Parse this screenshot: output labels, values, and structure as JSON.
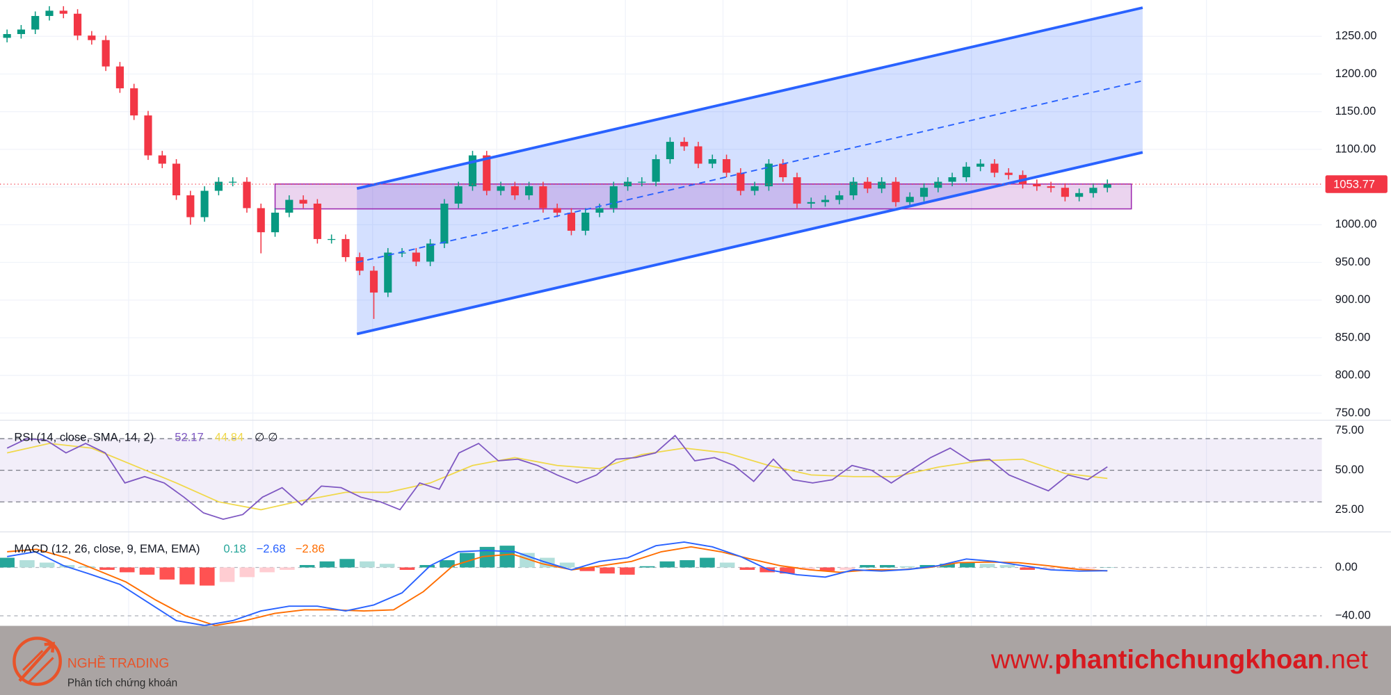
{
  "chart_data": [
    {
      "type": "candlestick",
      "open": [
        1248,
        1253,
        1259,
        1277,
        1284,
        1280,
        1251,
        1245,
        1210,
        1181,
        1145,
        1092,
        1081,
        1039,
        1010,
        1045,
        1057,
        1057,
        1022,
        990,
        1016,
        1033,
        1028,
        981,
        981,
        957,
        939,
        910,
        963,
        963,
        951,
        975,
        1028,
        1051,
        1092,
        1045,
        1051,
        1039,
        1051,
        1022,
        1016,
        992,
        1016,
        1022,
        1051,
        1057,
        1057,
        1087,
        1110,
        1104,
        1081,
        1087,
        1069,
        1045,
        1051,
        1081,
        1063,
        1028,
        1030,
        1033,
        1039,
        1057,
        1048,
        1057,
        1030,
        1037,
        1049,
        1057,
        1063,
        1077,
        1081,
        1069,
        1066,
        1054,
        1051,
        1049,
        1037,
        1042,
        1049
      ],
      "high": [
        1259,
        1265,
        1283,
        1290,
        1290,
        1286,
        1257,
        1251,
        1216,
        1187,
        1151,
        1098,
        1087,
        1045,
        1051,
        1063,
        1063,
        1063,
        1028,
        1022,
        1039,
        1039,
        1034,
        987,
        987,
        963,
        945,
        969,
        969,
        969,
        981,
        1034,
        1057,
        1098,
        1098,
        1057,
        1057,
        1057,
        1057,
        1028,
        1022,
        1022,
        1028,
        1057,
        1063,
        1063,
        1093,
        1116,
        1116,
        1110,
        1093,
        1093,
        1075,
        1057,
        1087,
        1087,
        1069,
        1036,
        1039,
        1045,
        1063,
        1063,
        1063,
        1063,
        1043,
        1055,
        1063,
        1069,
        1083,
        1087,
        1087,
        1075,
        1072,
        1060,
        1057,
        1055,
        1048,
        1055,
        1060
      ],
      "low": [
        1242,
        1247,
        1253,
        1271,
        1274,
        1245,
        1239,
        1204,
        1175,
        1139,
        1086,
        1075,
        1033,
        1000,
        1004,
        1039,
        1051,
        1016,
        962,
        984,
        1010,
        1022,
        975,
        975,
        951,
        933,
        875,
        904,
        957,
        945,
        945,
        969,
        1022,
        1045,
        1039,
        1039,
        1033,
        1033,
        1016,
        1010,
        986,
        986,
        1010,
        1016,
        1045,
        1051,
        1051,
        1081,
        1098,
        1075,
        1075,
        1063,
        1039,
        1039,
        1045,
        1057,
        1022,
        1022,
        1024,
        1027,
        1033,
        1042,
        1042,
        1024,
        1024,
        1031,
        1043,
        1051,
        1057,
        1071,
        1063,
        1060,
        1048,
        1045,
        1043,
        1031,
        1031,
        1036,
        1043
      ],
      "close": [
        1253,
        1259,
        1277,
        1284,
        1280,
        1251,
        1245,
        1210,
        1181,
        1145,
        1092,
        1081,
        1039,
        1010,
        1045,
        1057,
        1057,
        1022,
        990,
        1016,
        1033,
        1028,
        981,
        981,
        957,
        939,
        910,
        963,
        963,
        951,
        975,
        1028,
        1051,
        1092,
        1045,
        1051,
        1039,
        1051,
        1022,
        1016,
        992,
        1016,
        1022,
        1051,
        1057,
        1057,
        1087,
        1110,
        1104,
        1081,
        1087,
        1069,
        1045,
        1051,
        1081,
        1063,
        1028,
        1030,
        1033,
        1039,
        1057,
        1048,
        1057,
        1030,
        1037,
        1049,
        1057,
        1063,
        1077,
        1081,
        1069,
        1066,
        1054,
        1051,
        1049,
        1037,
        1042,
        1049,
        1053.77
      ],
      "up_color": "#089981",
      "down_color": "#f23645",
      "xlim": [
        -0.5,
        93.2
      ],
      "ylim": [
        740.6,
        1298.2
      ],
      "yticks": [
        {
          "value": 750,
          "label": "750.00"
        },
        {
          "value": 800,
          "label": "800.00"
        },
        {
          "value": 850,
          "label": "850.00"
        },
        {
          "value": 900,
          "label": "900.00"
        },
        {
          "value": 950,
          "label": "950.00"
        },
        {
          "value": 1000,
          "label": "1000.00"
        },
        {
          "value": 1050,
          "label": "1050.00"
        },
        {
          "value": 1100,
          "label": "1100.00"
        },
        {
          "value": 1150,
          "label": "1150.00"
        },
        {
          "value": 1200,
          "label": "1200.00"
        },
        {
          "value": 1250,
          "label": "1250.00"
        }
      ],
      "grid": true,
      "last_price": 1053.77,
      "last_price_color": "#f23645",
      "channel": {
        "x": [
          24.8,
          80.5
        ],
        "lower": [
          855,
          1096
        ],
        "middle": [
          950,
          1191
        ],
        "upper": [
          1048,
          1288
        ],
        "color": "#2962ff",
        "fill": "rgba(41,98,255,0.2)"
      },
      "zone": {
        "x": [
          19,
          79.7
        ],
        "y": [
          1021,
          1054
        ],
        "color": "#9c27b0",
        "fill": "rgba(156,39,176,0.2)"
      }
    },
    {
      "type": "line",
      "title": "RSI (14, close, SMA, 14, 2)",
      "series": [
        {
          "color": "#7e57c2",
          "values": [
            64,
            70,
            69,
            61,
            67,
            61,
            42,
            46,
            42,
            33,
            23,
            19,
            22,
            33,
            39,
            28,
            40,
            39,
            33,
            30,
            25,
            42,
            38,
            61,
            67,
            56,
            57,
            53,
            47,
            42,
            47,
            57,
            58,
            61,
            72,
            56,
            58,
            53,
            43,
            57,
            44,
            42,
            44,
            53,
            50,
            42,
            50,
            58,
            64,
            56,
            57,
            47,
            42,
            37,
            47,
            44,
            52.17
          ]
        },
        {
          "color": "#f0d84a",
          "values": [
            61,
            67,
            64,
            53,
            42,
            30,
            25,
            31,
            36,
            36,
            42,
            53,
            58,
            53,
            51,
            60,
            64,
            61,
            53,
            47,
            46,
            46,
            52,
            56,
            57,
            48,
            44.84
          ]
        }
      ],
      "legend_values": [
        52.17,
        44.84
      ],
      "legend_extra": "∅ ∅",
      "ylim": [
        11,
        81.7
      ],
      "yticks": [
        {
          "value": 75,
          "label": "75.00"
        },
        {
          "value": 50,
          "label": "50.00"
        },
        {
          "value": 25,
          "label": "25.00"
        }
      ],
      "bands": [
        70,
        50,
        30
      ],
      "band_fill": "rgba(126,87,194,0.1)"
    },
    {
      "type": "macd",
      "title": "MACD (12, 26, close, 9, EMA, EMA)",
      "histogram": [
        8,
        6,
        4,
        2,
        1,
        -2,
        -4,
        -6,
        -10,
        -14,
        -15,
        -12,
        -8,
        -4,
        -2,
        2,
        5,
        7,
        5,
        3,
        -2,
        2,
        6,
        12,
        17,
        18,
        12,
        8,
        4,
        -3,
        -5,
        -6,
        1,
        5,
        6,
        8,
        4,
        -2,
        -4,
        -5,
        -2,
        -3,
        -2,
        2,
        2,
        1,
        2,
        3,
        4,
        3,
        2,
        -2,
        -2,
        -2,
        -1,
        0.18
      ],
      "histogram_colors": [
        "#26a69a",
        "#b2dfdb",
        "#ff5252",
        "#ffcdd2"
      ],
      "series": [
        {
          "color": "#2962ff",
          "values": [
            9,
            13,
            1.5,
            -6,
            -14,
            -29,
            -44,
            -48,
            -44,
            -36,
            -32,
            -32,
            -36,
            -31,
            -21,
            1.5,
            13,
            14,
            13,
            5,
            -2,
            5,
            8,
            18,
            21,
            17,
            9,
            -2,
            -6,
            -8,
            -2,
            -3,
            -1.5,
            1.5,
            7,
            5,
            1.5,
            -2,
            -3,
            -2.68
          ]
        },
        {
          "color": "#ff6d00",
          "values": [
            13,
            15,
            8,
            -2,
            -12,
            -27,
            -40,
            -48,
            -44,
            -38,
            -35,
            -35,
            -36,
            -35,
            -20,
            1.5,
            9,
            11,
            3,
            -2,
            1.5,
            5,
            13,
            17,
            13,
            7,
            1.5,
            -2,
            -4,
            -2,
            -2,
            0,
            4,
            4.5,
            4,
            1.5,
            -1.5,
            -2.86
          ]
        }
      ],
      "legend_values": [
        0.18,
        {
          "value": -2.68,
          "label": "−2.68"
        },
        {
          "value": -2.86,
          "label": "−2.86"
        }
      ],
      "ylim": [
        -48.3,
        29.4
      ],
      "yticks": [
        {
          "value": 0,
          "label": "0.00"
        },
        {
          "value": -40,
          "label": "−40.00"
        }
      ]
    }
  ],
  "footer": {
    "brand": "NGHỀ TRADING",
    "tagline": "Phân tích chứng khoán",
    "url_prefix": "www.",
    "url_main": "phantichchungkhoan",
    "url_suffix": ".net"
  }
}
